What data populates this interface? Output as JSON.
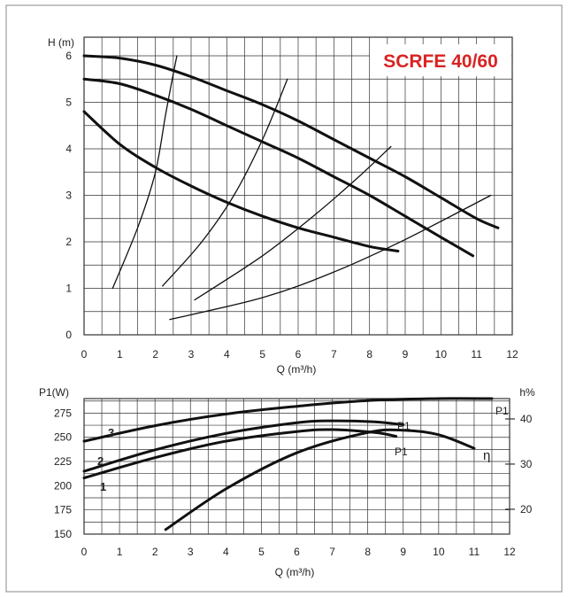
{
  "colors": {
    "title": "#d92323",
    "curve": "#111111",
    "grid": "#333333",
    "frame": "#888888"
  },
  "chart_data": [
    {
      "type": "line",
      "title": "SCRFE 40/60",
      "xlabel": "Q (m³/h)",
      "ylabel": "H (m)",
      "xlim": [
        0,
        12
      ],
      "ylim": [
        0,
        6.4
      ],
      "xticks": [
        "0",
        "1",
        "2",
        "3",
        "4",
        "5",
        "6",
        "7",
        "8",
        "9",
        "10",
        "11",
        "12"
      ],
      "yticks": [
        "0",
        "1",
        "2",
        "3",
        "4",
        "5",
        "6"
      ],
      "grid": true,
      "series": [
        {
          "role": "pump-curve",
          "x": [
            0,
            1,
            2,
            3,
            4,
            5,
            6,
            7,
            8,
            9,
            10,
            11,
            11.6
          ],
          "y": [
            6.0,
            5.95,
            5.8,
            5.55,
            5.25,
            4.95,
            4.6,
            4.2,
            3.8,
            3.4,
            2.95,
            2.5,
            2.3
          ]
        },
        {
          "role": "pump-curve",
          "x": [
            0,
            1,
            2,
            3,
            4,
            5,
            6,
            7,
            8,
            9,
            10,
            10.9
          ],
          "y": [
            5.5,
            5.4,
            5.15,
            4.85,
            4.5,
            4.15,
            3.8,
            3.4,
            3.0,
            2.55,
            2.1,
            1.7
          ]
        },
        {
          "role": "pump-curve",
          "x": [
            0,
            1,
            2,
            3,
            4,
            5,
            6,
            7,
            8,
            8.8
          ],
          "y": [
            4.8,
            4.1,
            3.6,
            3.2,
            2.85,
            2.55,
            2.3,
            2.1,
            1.9,
            1.8
          ]
        },
        {
          "role": "system-curve",
          "x": [
            0.8,
            1.5,
            2.0,
            2.3,
            2.6
          ],
          "y": [
            1.0,
            2.3,
            3.5,
            4.8,
            6.0
          ]
        },
        {
          "role": "system-curve",
          "x": [
            2.2,
            3.3,
            4.2,
            5.0,
            5.7
          ],
          "y": [
            1.05,
            2.0,
            3.0,
            4.2,
            5.5
          ]
        },
        {
          "role": "system-curve",
          "x": [
            3.1,
            5.0,
            6.5,
            7.7,
            8.6
          ],
          "y": [
            0.75,
            1.7,
            2.6,
            3.4,
            4.05
          ]
        },
        {
          "role": "system-curve",
          "x": [
            2.4,
            5.0,
            7.0,
            9.0,
            11.4
          ],
          "y": [
            0.33,
            0.8,
            1.35,
            2.05,
            3.0
          ]
        }
      ]
    },
    {
      "type": "line",
      "xlabel": "Q (m³/h)",
      "ylabel": "P1(W)",
      "y2label": "h%",
      "xlim": [
        0,
        12
      ],
      "ylim": [
        150,
        290
      ],
      "y2lim": [
        14.5,
        44.5
      ],
      "xticks": [
        "0",
        "1",
        "2",
        "3",
        "4",
        "5",
        "6",
        "7",
        "8",
        "9",
        "10",
        "11",
        "12"
      ],
      "yticks": [
        "150",
        "175",
        "200",
        "225",
        "250",
        "275"
      ],
      "y2ticks": [
        "20",
        "30",
        "40"
      ],
      "grid": true,
      "series": [
        {
          "label": "3",
          "axis": "left",
          "x": [
            0,
            2,
            4,
            6,
            8,
            10,
            11.5
          ],
          "y": [
            246,
            262,
            274,
            282,
            288,
            290,
            290
          ]
        },
        {
          "label": "2",
          "axis": "left",
          "x": [
            0,
            2,
            4,
            6,
            7,
            8.2,
            9.0
          ],
          "y": [
            215,
            237,
            254,
            265,
            267,
            266,
            263
          ]
        },
        {
          "label": "1",
          "axis": "left",
          "x": [
            0,
            2,
            4,
            6,
            7,
            8.2,
            8.8
          ],
          "y": [
            208,
            229,
            246,
            256,
            258,
            255,
            251
          ]
        },
        {
          "label": "η",
          "axis": "right",
          "x": [
            2.3,
            4,
            6,
            8,
            9,
            10,
            11
          ],
          "y": [
            15.5,
            24.5,
            32.5,
            37.0,
            37.5,
            36.5,
            33.5
          ]
        }
      ],
      "annotations": [
        "P1",
        "P1",
        "P1"
      ]
    }
  ]
}
